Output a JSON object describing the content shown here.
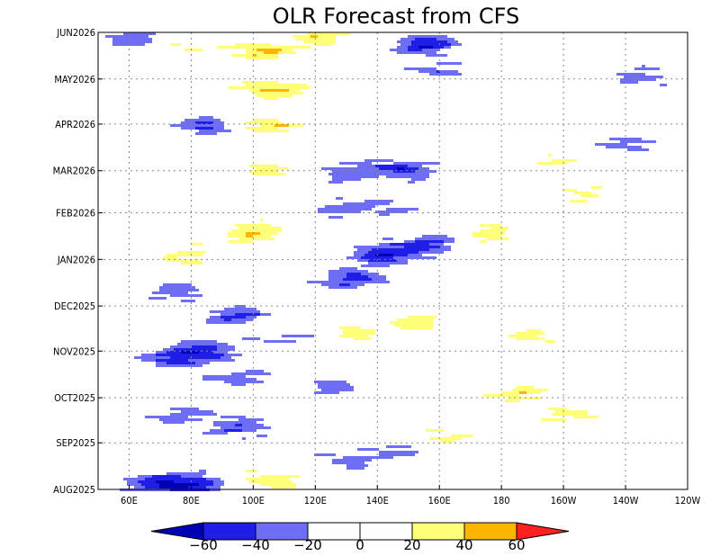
{
  "chart_data": {
    "type": "heatmap",
    "title": "OLR Forecast from CFS",
    "xlabel": "",
    "ylabel": "",
    "x_ticks": [
      "60E",
      "80E",
      "100E",
      "120E",
      "140E",
      "160E",
      "180",
      "160W",
      "140W",
      "120W"
    ],
    "y_ticks": [
      "AUG2025",
      "SEP2025",
      "OCT2025",
      "NOV2025",
      "DEC2025",
      "JAN2026",
      "FEB2026",
      "MAR2026",
      "APR2026",
      "MAY2026",
      "JUN2026"
    ],
    "x_range": [
      "50E",
      "120W"
    ],
    "y_range": [
      "AUG2025",
      "JUN2026"
    ],
    "grid": true,
    "colorbar": {
      "labels": [
        "-60",
        "-40",
        "-20",
        "0",
        "20",
        "40",
        "60"
      ],
      "bins": [
        {
          "range": "< -60",
          "color": "#0000b4"
        },
        {
          "range": "-60 to -40",
          "color": "#1e1ee6"
        },
        {
          "range": "-40 to -20",
          "color": "#6e6ef5"
        },
        {
          "range": "-20 to 0",
          "color": "#ffffff"
        },
        {
          "range": "0 to 20",
          "color": "#ffffff"
        },
        {
          "range": "20 to 40",
          "color": "#ffff78"
        },
        {
          "range": "40 to 60",
          "color": "#ffb400"
        },
        {
          "range": "> 60",
          "color": "#ff2020"
        }
      ]
    },
    "features": [
      {
        "lon": 68,
        "date": "2025-08-06",
        "value": -55
      },
      {
        "lon": 82,
        "date": "2025-08-05",
        "value": -50
      },
      {
        "lon": 105,
        "date": "2025-08-08",
        "value": 35
      },
      {
        "lon": 130,
        "date": "2025-08-22",
        "value": -30
      },
      {
        "lon": 150,
        "date": "2025-08-28",
        "value": -28
      },
      {
        "lon": 95,
        "date": "2025-09-12",
        "value": -40
      },
      {
        "lon": 75,
        "date": "2025-09-20",
        "value": -35
      },
      {
        "lon": 160,
        "date": "2025-09-05",
        "value": 25
      },
      {
        "lon": 200,
        "date": "2025-09-20",
        "value": 25
      },
      {
        "lon": 185,
        "date": "2025-10-05",
        "value": 30
      },
      {
        "lon": 95,
        "date": "2025-10-15",
        "value": -35
      },
      {
        "lon": 125,
        "date": "2025-10-10",
        "value": -28
      },
      {
        "lon": 75,
        "date": "2025-10-28",
        "value": -50
      },
      {
        "lon": 85,
        "date": "2025-11-03",
        "value": -45
      },
      {
        "lon": 110,
        "date": "2025-11-12",
        "value": -30
      },
      {
        "lon": 130,
        "date": "2025-11-15",
        "value": 25
      },
      {
        "lon": 152,
        "date": "2025-11-20",
        "value": 30
      },
      {
        "lon": 190,
        "date": "2025-11-12",
        "value": 22
      },
      {
        "lon": 95,
        "date": "2025-11-25",
        "value": -45
      },
      {
        "lon": 75,
        "date": "2025-12-12",
        "value": -30
      },
      {
        "lon": 130,
        "date": "2025-12-20",
        "value": -50
      },
      {
        "lon": 142,
        "date": "2026-01-05",
        "value": -58
      },
      {
        "lon": 155,
        "date": "2026-01-12",
        "value": -45
      },
      {
        "lon": 100,
        "date": "2026-01-20",
        "value": 40
      },
      {
        "lon": 80,
        "date": "2026-01-05",
        "value": 28
      },
      {
        "lon": 175,
        "date": "2026-01-20",
        "value": 25
      },
      {
        "lon": 125,
        "date": "2026-02-05",
        "value": -30
      },
      {
        "lon": 145,
        "date": "2026-02-05",
        "value": -28
      },
      {
        "lon": 205,
        "date": "2026-02-15",
        "value": 22
      },
      {
        "lon": 148,
        "date": "2026-03-03",
        "value": -50
      },
      {
        "lon": 130,
        "date": "2026-03-01",
        "value": -32
      },
      {
        "lon": 105,
        "date": "2026-03-01",
        "value": 28
      },
      {
        "lon": 195,
        "date": "2026-03-10",
        "value": 22
      },
      {
        "lon": 85,
        "date": "2026-04-01",
        "value": -40
      },
      {
        "lon": 105,
        "date": "2026-04-01",
        "value": 38
      },
      {
        "lon": 220,
        "date": "2026-03-20",
        "value": -28
      },
      {
        "lon": 105,
        "date": "2026-04-25",
        "value": 45
      },
      {
        "lon": 160,
        "date": "2026-05-08",
        "value": -30
      },
      {
        "lon": 225,
        "date": "2026-05-03",
        "value": -30
      },
      {
        "lon": 75,
        "date": "2026-05-25",
        "value": 22
      },
      {
        "lon": 155,
        "date": "2026-05-25",
        "value": -58
      },
      {
        "lon": 102,
        "date": "2026-05-20",
        "value": 42
      },
      {
        "lon": 120,
        "date": "2026-05-31",
        "value": 35
      },
      {
        "lon": 62,
        "date": "2026-05-28",
        "value": -40
      }
    ]
  }
}
